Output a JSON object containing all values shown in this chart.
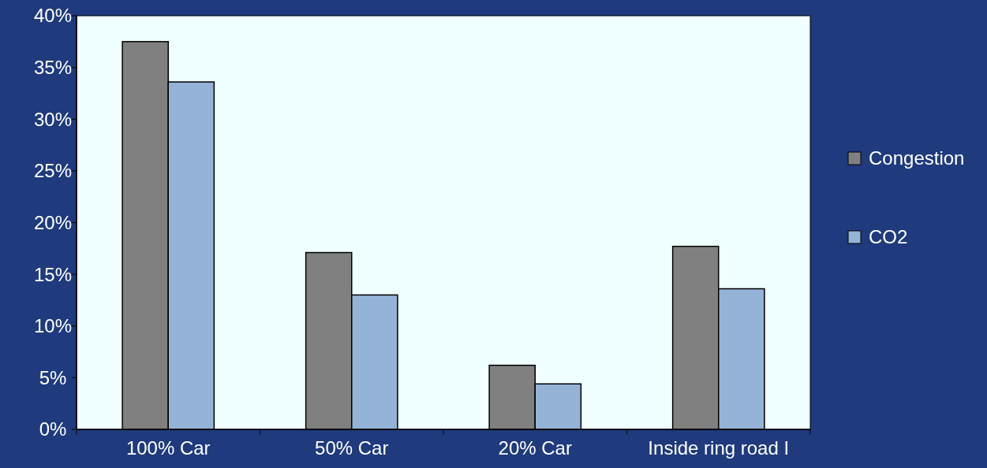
{
  "chart_data": {
    "type": "bar",
    "categories": [
      "100% Car",
      "50% Car",
      "20% Car",
      "Inside ring road I"
    ],
    "series": [
      {
        "name": "Congestion",
        "color": "#808080",
        "values": [
          37.5,
          17.1,
          6.2,
          17.7
        ]
      },
      {
        "name": "CO2",
        "color": "#95b3d7",
        "values": [
          33.6,
          13.0,
          4.4,
          13.6
        ]
      }
    ],
    "ylim": [
      0,
      40
    ],
    "yticks": [
      {
        "value": 0,
        "label": "0%"
      },
      {
        "value": 5,
        "label": "5%"
      },
      {
        "value": 10,
        "label": "10%"
      },
      {
        "value": 15,
        "label": "15%"
      },
      {
        "value": 20,
        "label": "20%"
      },
      {
        "value": 25,
        "label": "25%"
      },
      {
        "value": 30,
        "label": "30%"
      },
      {
        "value": 35,
        "label": "35%"
      },
      {
        "value": 40,
        "label": "40%"
      }
    ],
    "grid": false,
    "legend": "right"
  }
}
